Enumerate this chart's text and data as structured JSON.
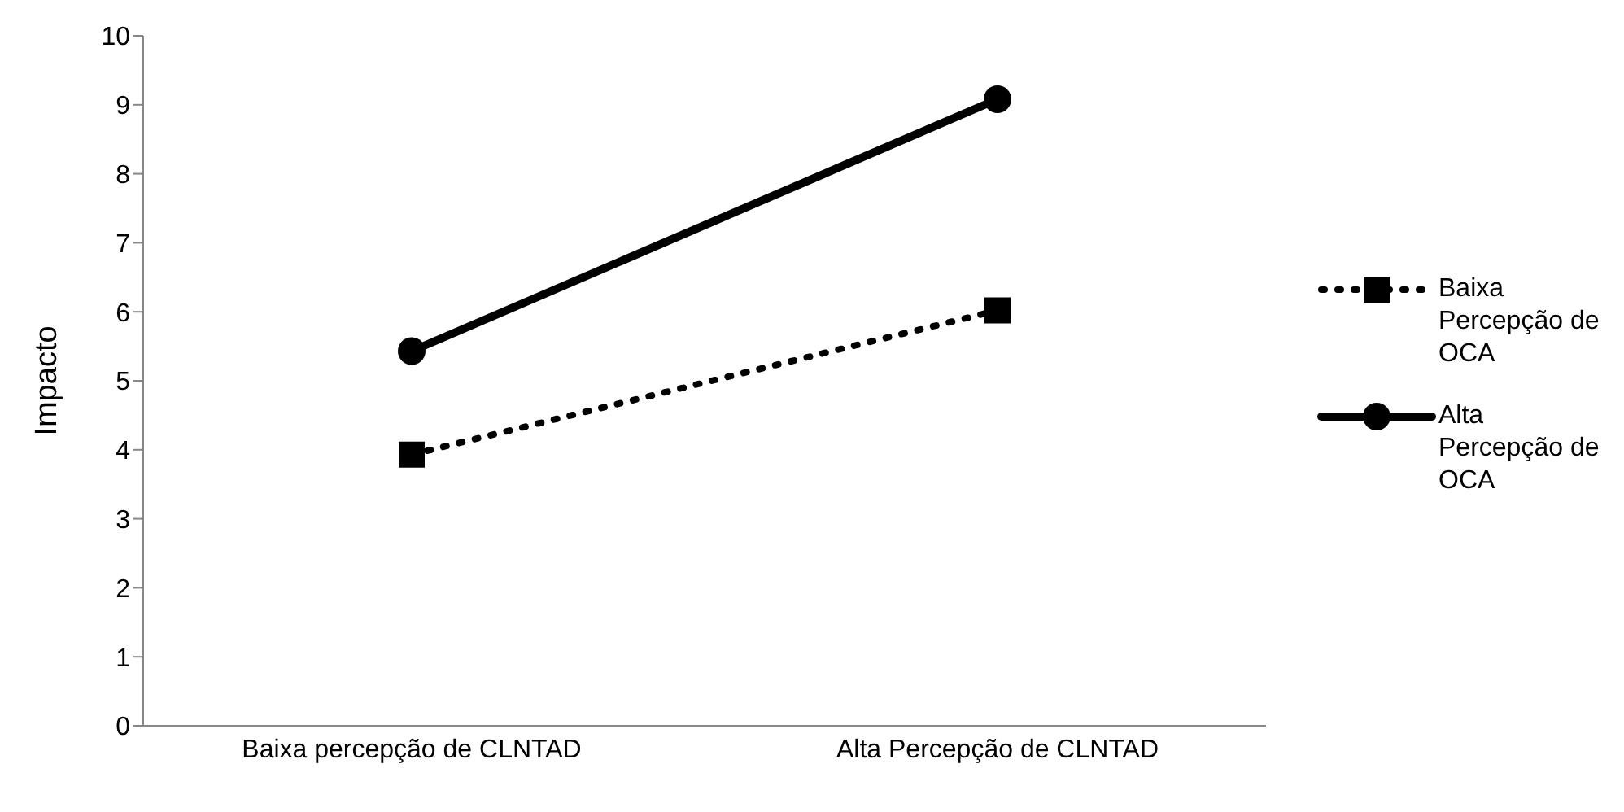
{
  "chart_data": {
    "type": "line",
    "ylabel": "Impacto",
    "categories": [
      "Baixa percepção de CLNTAD",
      "Alta Percepção de CLNTAD"
    ],
    "series": [
      {
        "name": "Baixa Percepção de OCA",
        "color": "#000000",
        "values": [
          3.93,
          6.02
        ],
        "marker": "square",
        "line_style": "dotted"
      },
      {
        "name": "Alta Percepção de OCA",
        "color": "#000000",
        "values": [
          5.43,
          9.08
        ],
        "marker": "circle",
        "line_style": "solid"
      }
    ],
    "ylim": [
      0,
      10
    ],
    "yticks": [
      0,
      1,
      2,
      3,
      4,
      5,
      6,
      7,
      8,
      9,
      10
    ],
    "grid": false,
    "legend": "right"
  }
}
